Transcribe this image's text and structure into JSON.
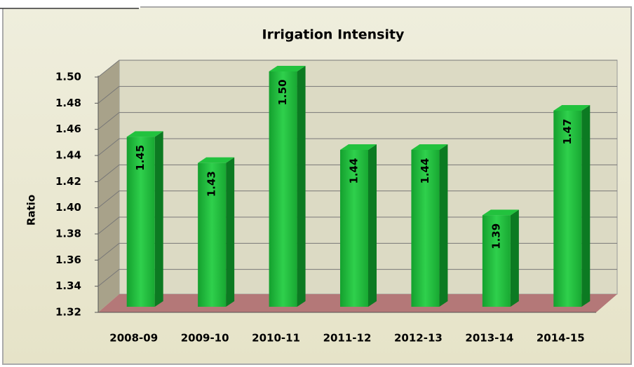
{
  "chart_data": {
    "type": "bar3d",
    "title": "Irrigation Intensity",
    "y_label": "Ratio",
    "categories": [
      "2008-09",
      "2009-10",
      "2010-11",
      "2011-12",
      "2012-13",
      "2013-14",
      "2014-15"
    ],
    "values": [
      1.45,
      1.43,
      1.5,
      1.44,
      1.44,
      1.39,
      1.47
    ],
    "value_labels": [
      "1.45",
      "1.43",
      "1.50",
      "1.44",
      "1.44",
      "1.39",
      "1.47"
    ],
    "color": "#1db33a",
    "ylim": [
      1.32,
      1.5
    ],
    "yticks": [
      1.32,
      1.34,
      1.36,
      1.38,
      {
        "value": 1.4,
        "label": "1.40"
      },
      1.42,
      1.44,
      1.46,
      1.48,
      {
        "value": 1.5,
        "label": "1.50"
      }
    ],
    "grid": true
  }
}
